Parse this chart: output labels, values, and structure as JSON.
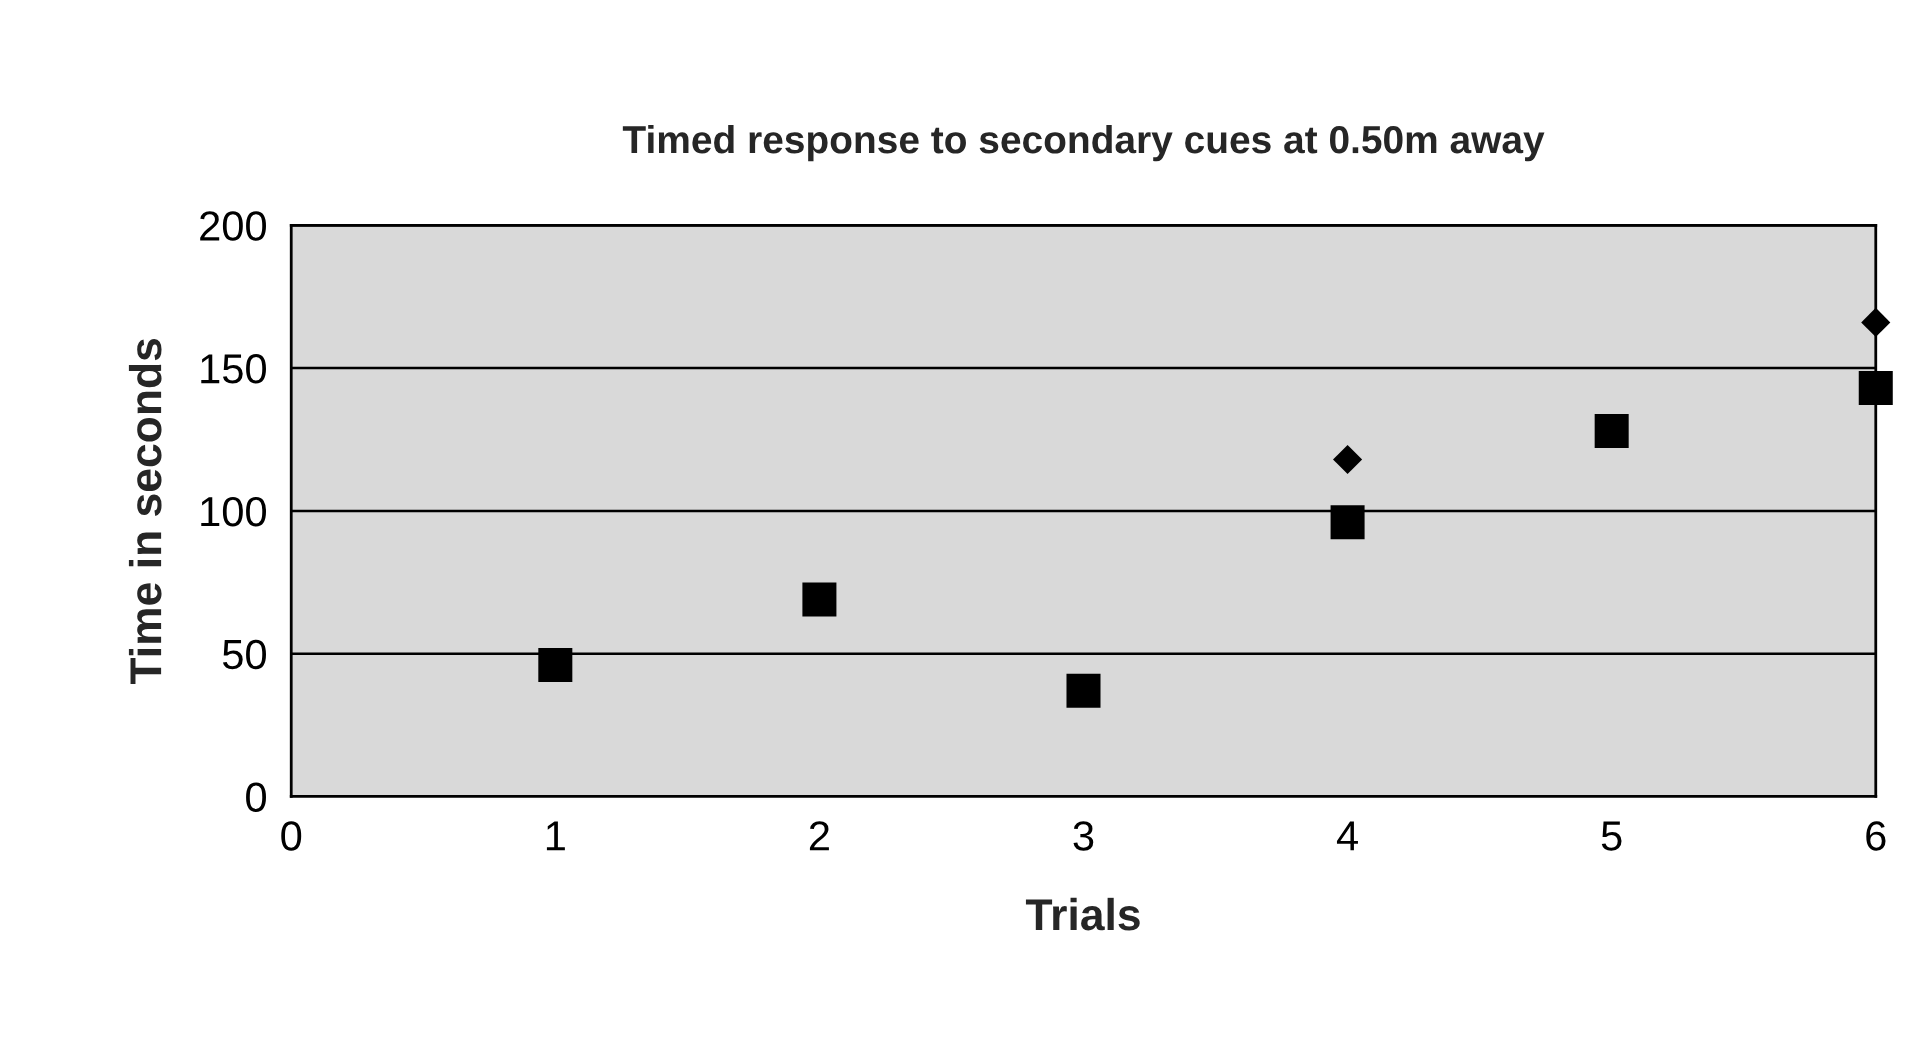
{
  "chart_data": {
    "type": "scatter",
    "title": "Timed response to secondary cues at 0.50m away",
    "xlabel": "Trials",
    "ylabel": "Time in seconds",
    "xlim": [
      0,
      6
    ],
    "xticks": [
      0,
      1,
      2,
      3,
      4,
      5,
      6
    ],
    "ylim": [
      0,
      200
    ],
    "yticks": [
      0,
      50,
      100,
      150,
      200
    ],
    "grid": "y",
    "legend": false,
    "series": [
      {
        "color": "#000000",
        "marker": "diamond",
        "x": [
          4,
          6
        ],
        "values": [
          118,
          166
        ]
      },
      {
        "color": "#000000",
        "marker": "square",
        "x": [
          1,
          2,
          3,
          4,
          5,
          6
        ],
        "values": [
          46,
          69,
          37,
          96,
          128,
          143
        ]
      }
    ]
  }
}
